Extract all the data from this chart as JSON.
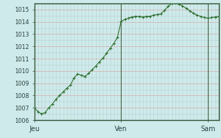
{
  "background_color": "#ceeaea",
  "plot_bg_color": "#ceeaea",
  "line_color": "#2d6e2d",
  "marker": "+",
  "marker_size": 3,
  "marker_lw": 0.8,
  "line_width": 0.8,
  "grid_minor_color": "#b8d0d0",
  "grid_major_color": "#d4a8a8",
  "tick_color": "#2d4040",
  "tick_fontsize": 6,
  "xtick_fontsize": 7,
  "ylim": [
    1006,
    1015.5
  ],
  "yticks": [
    1006,
    1007,
    1008,
    1009,
    1010,
    1011,
    1012,
    1013,
    1014,
    1015
  ],
  "xtick_labels": [
    "Jeu",
    "Ven",
    "Sam"
  ],
  "xtick_positions": [
    0,
    24,
    48
  ],
  "n_points": 52,
  "values": [
    1007.0,
    1006.7,
    1006.5,
    1006.6,
    1007.0,
    1007.3,
    1007.7,
    1008.0,
    1008.3,
    1008.6,
    1008.85,
    1009.45,
    1009.75,
    1009.65,
    1009.55,
    1009.8,
    1010.1,
    1010.4,
    1010.75,
    1011.05,
    1011.45,
    1011.85,
    1012.25,
    1012.75,
    1014.05,
    1014.2,
    1014.3,
    1014.4,
    1014.45,
    1014.45,
    1014.4,
    1014.45,
    1014.45,
    1014.55,
    1014.6,
    1014.65,
    1014.95,
    1015.25,
    1015.5,
    1015.55,
    1015.45,
    1015.3,
    1015.1,
    1014.9,
    1014.7,
    1014.55,
    1014.45,
    1014.35,
    1014.3,
    1014.35,
    1014.4,
    1014.45
  ]
}
